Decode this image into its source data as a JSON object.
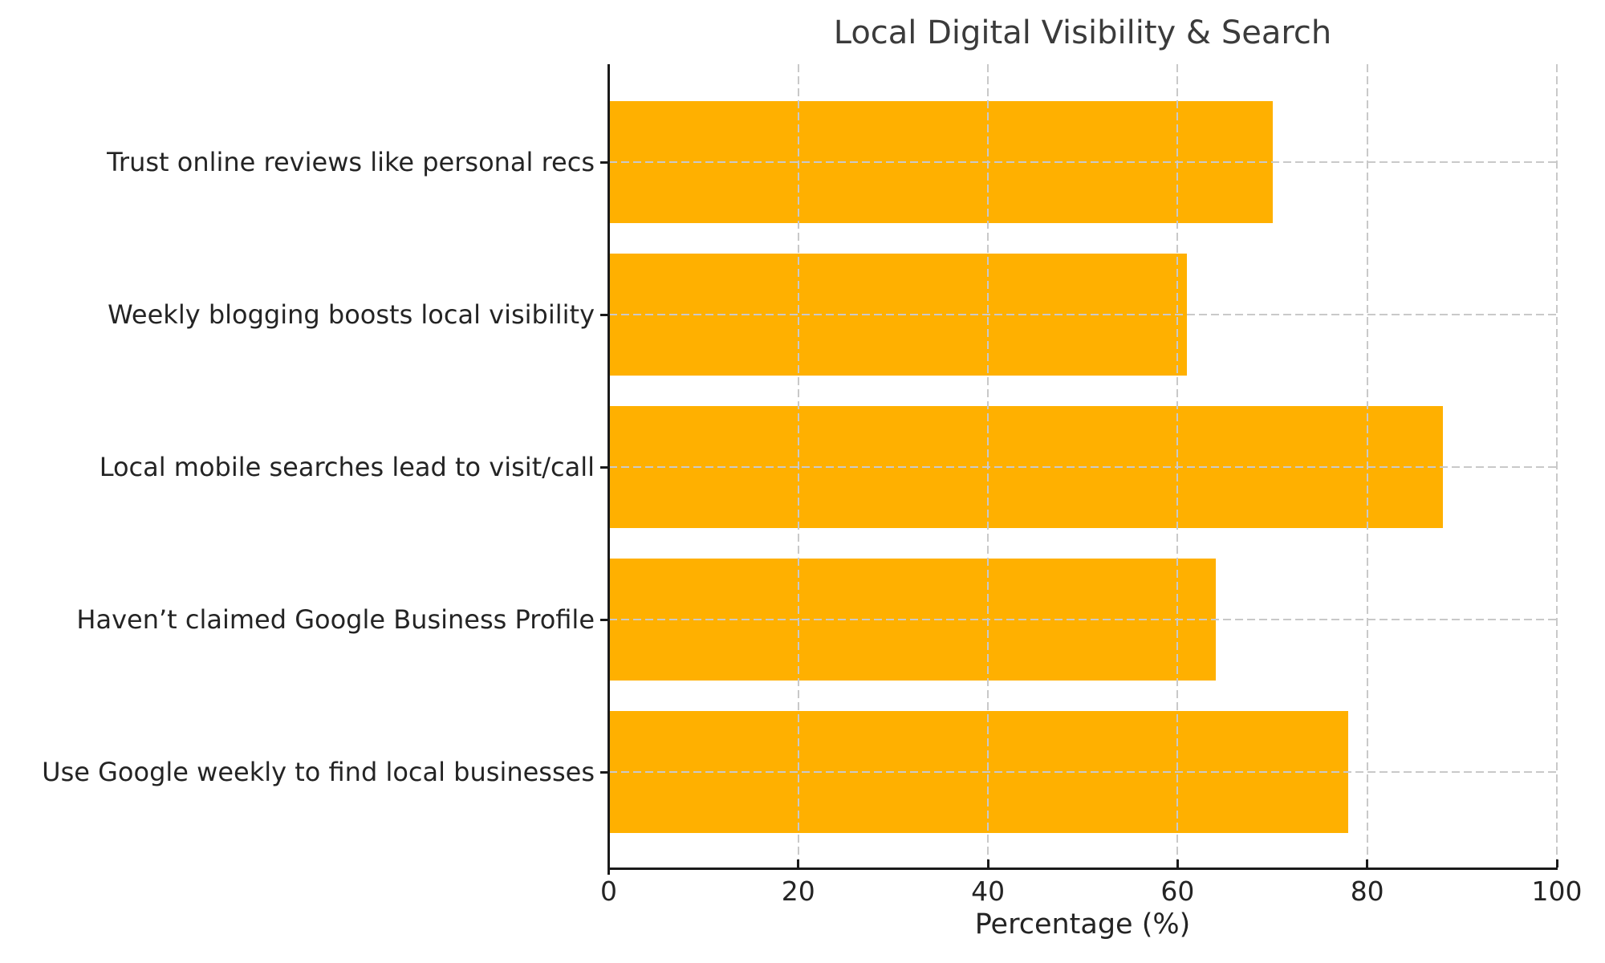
{
  "chart_data": {
    "type": "bar",
    "orientation": "horizontal",
    "title": "Local Digital Visibility & Search",
    "xlabel": "Percentage (%)",
    "ylabel": "",
    "categories": [
      "Trust online reviews like personal recs",
      "Weekly blogging boosts local visibility",
      "Local mobile searches lead to visit/call",
      "Haven’t claimed Google Business Profile",
      "Use Google weekly to find local businesses"
    ],
    "values": [
      70,
      61,
      88,
      64,
      78
    ],
    "xticks": [
      0,
      20,
      40,
      60,
      80,
      100
    ],
    "xlim": [
      0,
      100
    ],
    "bar_color": "#FFB000",
    "grid": "dashed gridlines on both axes, drawn above bars",
    "gridline_color": "#c9c9c9",
    "legend_position": "none"
  }
}
